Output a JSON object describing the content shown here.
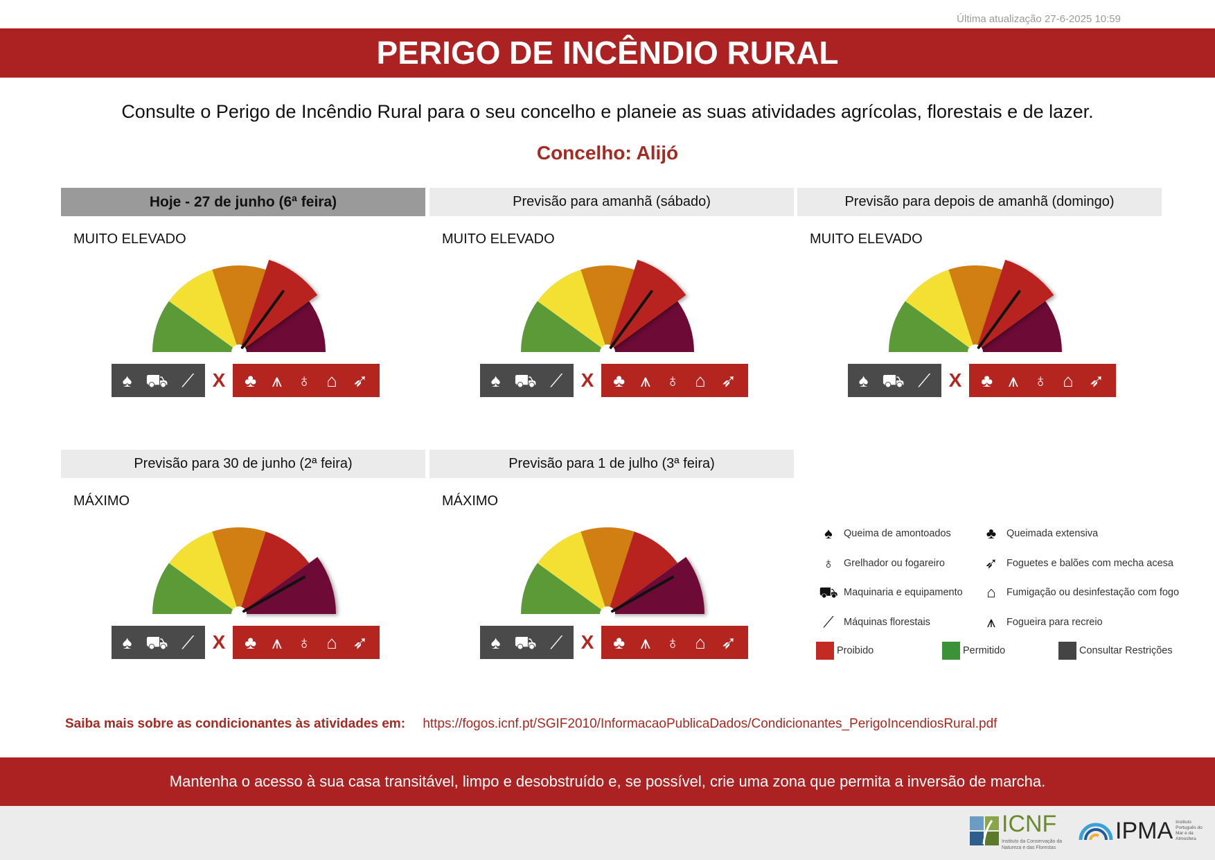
{
  "updated": "Última atualização 27-6-2025 10:59",
  "title": "PERIGO DE INCÊNDIO RURAL",
  "intro": "Consulte o Perigo de Incêndio Rural para o seu concelho e planeie as suas atividades agrícolas, florestais e de lazer.",
  "concelho": "Concelho: Alijó",
  "gauge_colors": [
    "#5b9a37",
    "#f4e033",
    "#d17f12",
    "#b8231f",
    "#6d0b36"
  ],
  "days": [
    {
      "header": "Hoje - 27 de junho (6ª feira)",
      "level": "MUITO ELEVADO",
      "level_index": 4,
      "today": true
    },
    {
      "header": "Previsão para amanhã (sábado)",
      "level": "MUITO ELEVADO",
      "level_index": 4
    },
    {
      "header": "Previsão para depois de amanhã (domingo)",
      "level": "MUITO ELEVADO",
      "level_index": 4
    },
    {
      "header": "Previsão para 30 de junho (2ª feira)",
      "level": "MÁXIMO",
      "level_index": 5
    },
    {
      "header": "Previsão para 1 de julho (3ª feira)",
      "level": "MÁXIMO",
      "level_index": 5
    }
  ],
  "restriction_icons": [
    "queima-amontoados",
    "maquinaria",
    "maquinas-florestais"
  ],
  "prohibited_icons": [
    "queimada-extensiva",
    "fogueira-recreio",
    "grelhador",
    "fumigacao",
    "foguetes"
  ],
  "separator": "X",
  "legend": {
    "items": [
      {
        "icon": "queima-amontoados",
        "label": "Queima de amontoados"
      },
      {
        "icon": "queimada-extensiva",
        "label": "Queimada extensiva"
      },
      {
        "icon": "grelhador",
        "label": "Grelhador ou fogareiro"
      },
      {
        "icon": "foguetes",
        "label": "Foguetes e balões com mecha acesa"
      },
      {
        "icon": "maquinaria",
        "label": "Maquinaria e equipamento"
      },
      {
        "icon": "fumigacao",
        "label": "Fumigação ou desinfestação com fogo"
      },
      {
        "icon": "maquinas-florestais",
        "label": "Máquinas florestais"
      },
      {
        "icon": "fogueira-recreio",
        "label": "Fogueira para recreio"
      }
    ],
    "swatches": [
      {
        "label": "Proibido",
        "color": "#c42a24"
      },
      {
        "label": "Permitido",
        "color": "#3c9237"
      },
      {
        "label": "Consultar Restrições",
        "color": "#444444"
      }
    ]
  },
  "link": {
    "label": "Saiba mais sobre as condicionantes às atividades em:",
    "url": "https://fogos.icnf.pt/SGIF2010/InformacaoPublicaDados/Condicionantes_PerigoIncendiosRural.pdf"
  },
  "footer": "Mantenha o acesso à sua casa transitável, limpo e desobstruído e, se possível, crie uma zona que permita a inversão de marcha.",
  "logos": {
    "icnf": "ICNF",
    "icnf_sub": "Instituto da Conservação da Natureza e das Florestas",
    "ipma": "IPMA",
    "ipma_sub": "Instituto Português do Mar e da Atmosfera"
  }
}
